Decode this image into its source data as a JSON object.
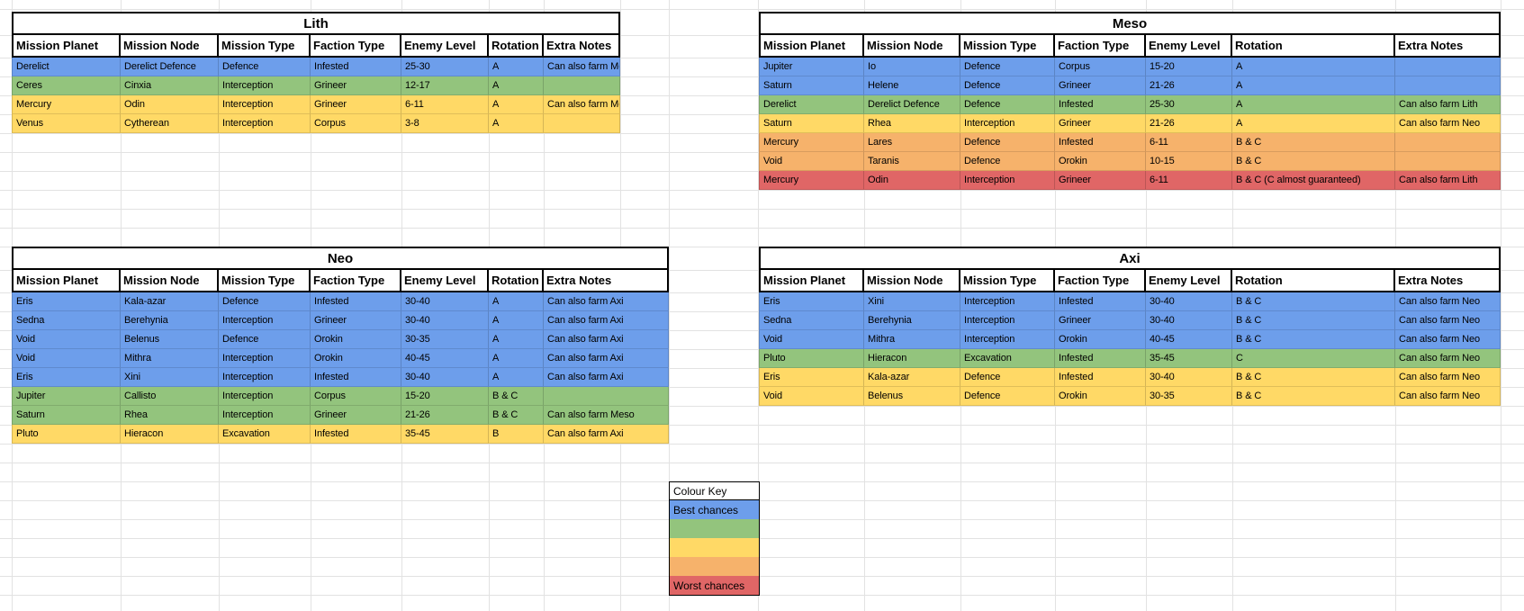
{
  "sheet": {
    "palette": {
      "blue": "#6d9eeb",
      "green": "#93c47d",
      "yellow": "#ffd966",
      "orange": "#f6b26b",
      "red": "#e06666",
      "gridline": "#e2e2e2",
      "table_border": "#000000"
    },
    "column_headers": [
      "Mission Planet",
      "Mission Node",
      "Mission Type",
      "Faction Type",
      "Enemy Level",
      "Rotation",
      "Extra Notes"
    ],
    "tables": [
      {
        "id": "lith",
        "title": "Lith",
        "rows": [
          {
            "color": "blue",
            "cells": [
              "Derelict",
              "Derelict Defence",
              "Defence",
              "Infested",
              "25-30",
              "A",
              "Can also farm Meso"
            ]
          },
          {
            "color": "green",
            "cells": [
              "Ceres",
              "Cinxia",
              "Interception",
              "Grineer",
              "12-17",
              "A",
              ""
            ]
          },
          {
            "color": "yellow",
            "cells": [
              "Mercury",
              "Odin",
              "Interception",
              "Grineer",
              "6-11",
              "A",
              "Can also farm Meso"
            ]
          },
          {
            "color": "yellow",
            "cells": [
              "Venus",
              "Cytherean",
              "Interception",
              "Corpus",
              "3-8",
              "A",
              ""
            ]
          }
        ]
      },
      {
        "id": "meso",
        "title": "Meso",
        "rows": [
          {
            "color": "blue",
            "cells": [
              "Jupiter",
              "Io",
              "Defence",
              "Corpus",
              "15-20",
              "A",
              ""
            ]
          },
          {
            "color": "blue",
            "cells": [
              "Saturn",
              "Helene",
              "Defence",
              "Grineer",
              "21-26",
              "A",
              ""
            ]
          },
          {
            "color": "green",
            "cells": [
              "Derelict",
              "Derelict Defence",
              "Defence",
              "Infested",
              "25-30",
              "A",
              "Can also farm Lith"
            ]
          },
          {
            "color": "yellow",
            "cells": [
              "Saturn",
              "Rhea",
              "Interception",
              "Grineer",
              "21-26",
              "A",
              "Can also farm Neo"
            ]
          },
          {
            "color": "orange",
            "cells": [
              "Mercury",
              "Lares",
              "Defence",
              "Infested",
              "6-11",
              "B & C",
              ""
            ]
          },
          {
            "color": "orange",
            "cells": [
              "Void",
              "Taranis",
              "Defence",
              "Orokin",
              "10-15",
              "B & C",
              ""
            ]
          },
          {
            "color": "red",
            "cells": [
              "Mercury",
              "Odin",
              "Interception",
              "Grineer",
              "6-11",
              "B & C (C almost guaranteed)",
              "Can also farm Lith"
            ]
          }
        ]
      },
      {
        "id": "neo",
        "title": "Neo",
        "rows": [
          {
            "color": "blue",
            "cells": [
              "Eris",
              "Kala-azar",
              "Defence",
              "Infested",
              "30-40",
              "A",
              "Can also farm Axi"
            ]
          },
          {
            "color": "blue",
            "cells": [
              "Sedna",
              "Berehynia",
              "Interception",
              "Grineer",
              "30-40",
              "A",
              "Can also farm Axi"
            ]
          },
          {
            "color": "blue",
            "cells": [
              "Void",
              "Belenus",
              "Defence",
              "Orokin",
              "30-35",
              "A",
              "Can also farm Axi"
            ]
          },
          {
            "color": "blue",
            "cells": [
              "Void",
              "Mithra",
              "Interception",
              "Orokin",
              "40-45",
              "A",
              "Can also farm Axi"
            ]
          },
          {
            "color": "blue",
            "cells": [
              "Eris",
              "Xini",
              "Interception",
              "Infested",
              "30-40",
              "A",
              "Can also farm Axi"
            ]
          },
          {
            "color": "green",
            "cells": [
              "Jupiter",
              "Callisto",
              "Interception",
              "Corpus",
              "15-20",
              "B & C",
              ""
            ]
          },
          {
            "color": "green",
            "cells": [
              "Saturn",
              "Rhea",
              "Interception",
              "Grineer",
              "21-26",
              "B & C",
              "Can also farm Meso"
            ]
          },
          {
            "color": "yellow",
            "cells": [
              "Pluto",
              "Hieracon",
              "Excavation",
              "Infested",
              "35-45",
              "B",
              "Can also farm Axi"
            ]
          }
        ]
      },
      {
        "id": "axi",
        "title": "Axi",
        "rows": [
          {
            "color": "blue",
            "cells": [
              "Eris",
              "Xini",
              "Interception",
              "Infested",
              "30-40",
              "B & C",
              "Can also farm Neo"
            ]
          },
          {
            "color": "blue",
            "cells": [
              "Sedna",
              "Berehynia",
              "Interception",
              "Grineer",
              "30-40",
              "B & C",
              "Can also farm Neo"
            ]
          },
          {
            "color": "blue",
            "cells": [
              "Void",
              "Mithra",
              "Interception",
              "Orokin",
              "40-45",
              "B & C",
              "Can also farm Neo"
            ]
          },
          {
            "color": "green",
            "cells": [
              "Pluto",
              "Hieracon",
              "Excavation",
              "Infested",
              "35-45",
              "C",
              "Can also farm Neo"
            ]
          },
          {
            "color": "yellow",
            "cells": [
              "Eris",
              "Kala-azar",
              "Defence",
              "Infested",
              "30-40",
              "B & C",
              "Can also farm Neo"
            ]
          },
          {
            "color": "yellow",
            "cells": [
              "Void",
              "Belenus",
              "Defence",
              "Orokin",
              "30-35",
              "B & C",
              "Can also farm Neo"
            ]
          }
        ]
      }
    ],
    "colour_key": {
      "title": "Colour Key",
      "entries": [
        {
          "label": "Best chances",
          "color": "blue"
        },
        {
          "label": "",
          "color": "green"
        },
        {
          "label": "",
          "color": "yellow"
        },
        {
          "label": "",
          "color": "orange"
        },
        {
          "label": "Worst chances",
          "color": "red"
        }
      ]
    }
  }
}
